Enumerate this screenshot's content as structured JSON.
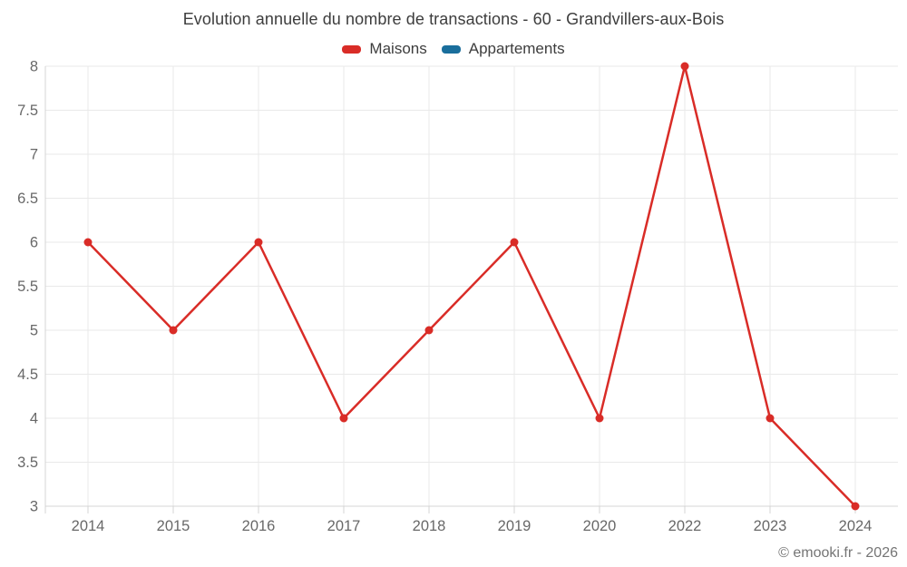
{
  "header": {
    "title": "Evolution annuelle du nombre de transactions - 60 - Grandvillers-aux-Bois"
  },
  "legend": {
    "items": [
      {
        "label": "Maisons",
        "color": "#d92c27"
      },
      {
        "label": "Appartements",
        "color": "#1a6e9c"
      }
    ]
  },
  "footer": {
    "credit": "© emooki.fr - 2026"
  },
  "colors": {
    "maisons_line": "#d92c27",
    "appartements_line": "#1a6e9c",
    "gridline": "#e9e9e9",
    "axis_line": "#d4d4d4",
    "tick_label": "#686868"
  },
  "chart_data": {
    "type": "line",
    "title": "Evolution annuelle du nombre de transactions - 60 - Grandvillers-aux-Bois",
    "categories": [
      "2014",
      "2015",
      "2016",
      "2017",
      "2018",
      "2019",
      "2020",
      "2022",
      "2023",
      "2024"
    ],
    "series": [
      {
        "name": "Maisons",
        "color": "#d92c27",
        "values": [
          6,
          5,
          6,
          4,
          5,
          6,
          4,
          8,
          4,
          3
        ]
      },
      {
        "name": "Appartements",
        "color": "#1a6e9c",
        "values": []
      }
    ],
    "xlabel": "",
    "ylabel": "",
    "ylim": [
      3,
      8
    ],
    "ytick_step": 0.5,
    "ytick_labels": [
      "3",
      "3.5",
      "4",
      "4.5",
      "5",
      "5.5",
      "6",
      "6.5",
      "7",
      "7.5",
      "8"
    ],
    "grid": true,
    "legend_position": "top",
    "point_marker": "circle"
  }
}
